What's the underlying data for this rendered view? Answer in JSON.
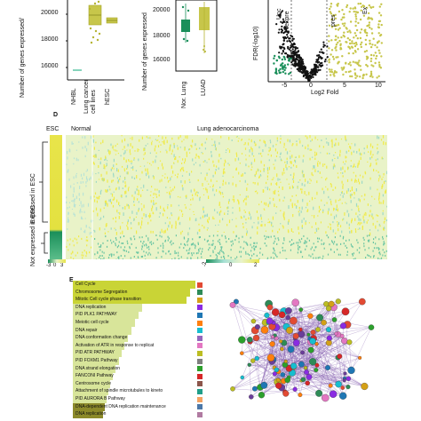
{
  "panelA": {
    "ylabel": "Number of genes expressed/",
    "yticks": [
      "20000",
      "18000",
      "16000"
    ],
    "xlabels": [
      "NHBL",
      "Lung cancer cell lines",
      "hESC"
    ]
  },
  "panelB": {
    "ylabel": "Number of genes expressed",
    "yticks": [
      "20000",
      "18000",
      "16000"
    ],
    "xlabels": [
      "Nor. Lung",
      "LUAD"
    ]
  },
  "panelC": {
    "ylabel": "FDR(-log10)",
    "xlabel": "Log2 Fold",
    "xticks": [
      "-5",
      "0",
      "5",
      "10"
    ],
    "label_left_1": "Unc",
    "label_left_2": "expre",
    "label_right_1": "Ex",
    "label_right_2": "pres"
  },
  "panelD": {
    "letter": "D",
    "esc_label": "ESC",
    "normal_label": "Normal",
    "luad_label": "Lung adenocarcinoma",
    "row_group_top": "Expressed in ESC",
    "row_group_bottom": "Not expressed in ESC",
    "esc_scale": [
      "-3",
      "0",
      "3"
    ],
    "main_scale": [
      "-2",
      "0",
      "2"
    ]
  },
  "panelE": {
    "letter": "E",
    "terms": [
      "Cell Cycle",
      "Chromosome Segregation",
      "Mitotic Cell cycle phase transition",
      "DNA replication",
      "PID PLK1 PATHWAY",
      "Meiotic cell cycle",
      "DNA repair",
      "DNA conformation change",
      "Activation of ATR in response to replicat",
      "PID ATR PATHWAY",
      "PID FOXM1 Pathway",
      "DNA strand elongation",
      "FANCONI Pathway",
      "Centrosome cycle",
      "Attachment of spindle microtubules to kineto",
      "PID AURORA B Pathway",
      "DNA-dependent DNA replication maintenance",
      "DNA replication"
    ],
    "colors": {
      "bar_dark": "#c9d436",
      "bar_light": "#d8e59a",
      "bar_olive": "#8c8a2a",
      "network_edge": "#7b52ab"
    }
  },
  "colors": {
    "olive": "#b8bb3a",
    "green": "#1a8f5a",
    "yellow": "#e8e44a",
    "cyan": "#a7e0d4",
    "black": "#111111"
  }
}
